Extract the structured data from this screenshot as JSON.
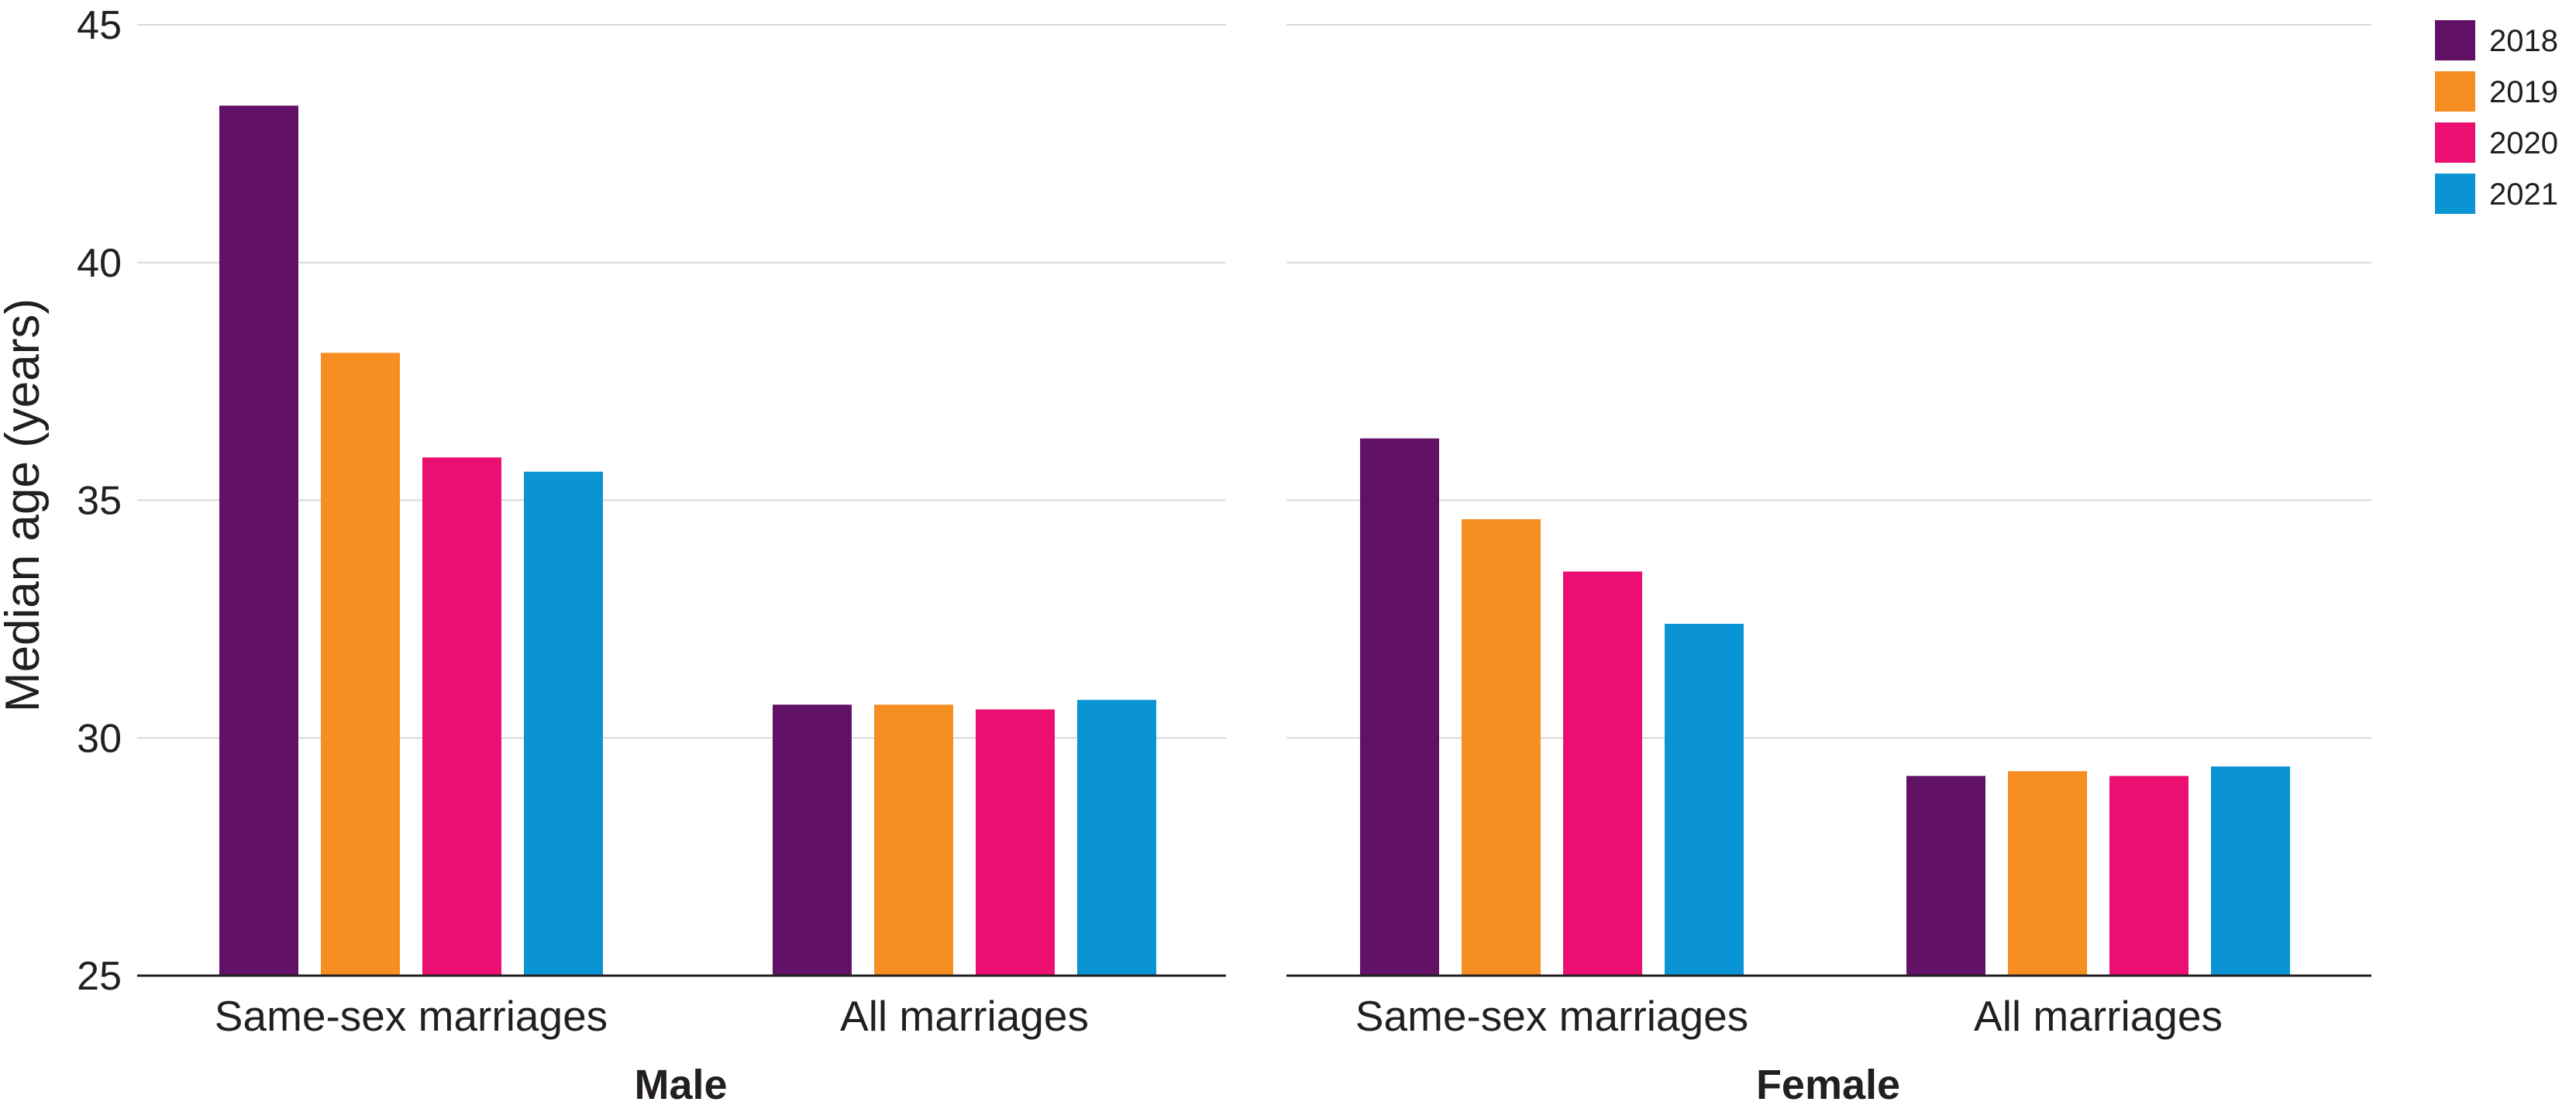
{
  "chart_data": {
    "type": "bar",
    "ylabel": "Median age (years)",
    "ylim": [
      25,
      45
    ],
    "yticks": [
      "25",
      "30",
      "35",
      "40",
      "45"
    ],
    "grid": true,
    "legend_placement": "top-right",
    "categories": [
      "Same-sex marriages",
      "All marriages"
    ],
    "series_names": [
      "2018",
      "2019",
      "2020",
      "2021"
    ],
    "colors": [
      "#611266",
      "#f68e22",
      "#ec0f72",
      "#0b94d4"
    ],
    "panels": [
      {
        "title": "Male",
        "series": [
          {
            "name": "2018",
            "values": [
              43.3,
              30.7
            ]
          },
          {
            "name": "2019",
            "values": [
              38.1,
              30.7
            ]
          },
          {
            "name": "2020",
            "values": [
              35.9,
              30.6
            ]
          },
          {
            "name": "2021",
            "values": [
              35.6,
              30.8
            ]
          }
        ]
      },
      {
        "title": "Female",
        "series": [
          {
            "name": "2018",
            "values": [
              36.3,
              29.2
            ]
          },
          {
            "name": "2019",
            "values": [
              34.6,
              29.3
            ]
          },
          {
            "name": "2020",
            "values": [
              33.5,
              29.2
            ]
          },
          {
            "name": "2021",
            "values": [
              32.4,
              29.4
            ]
          }
        ]
      }
    ]
  }
}
